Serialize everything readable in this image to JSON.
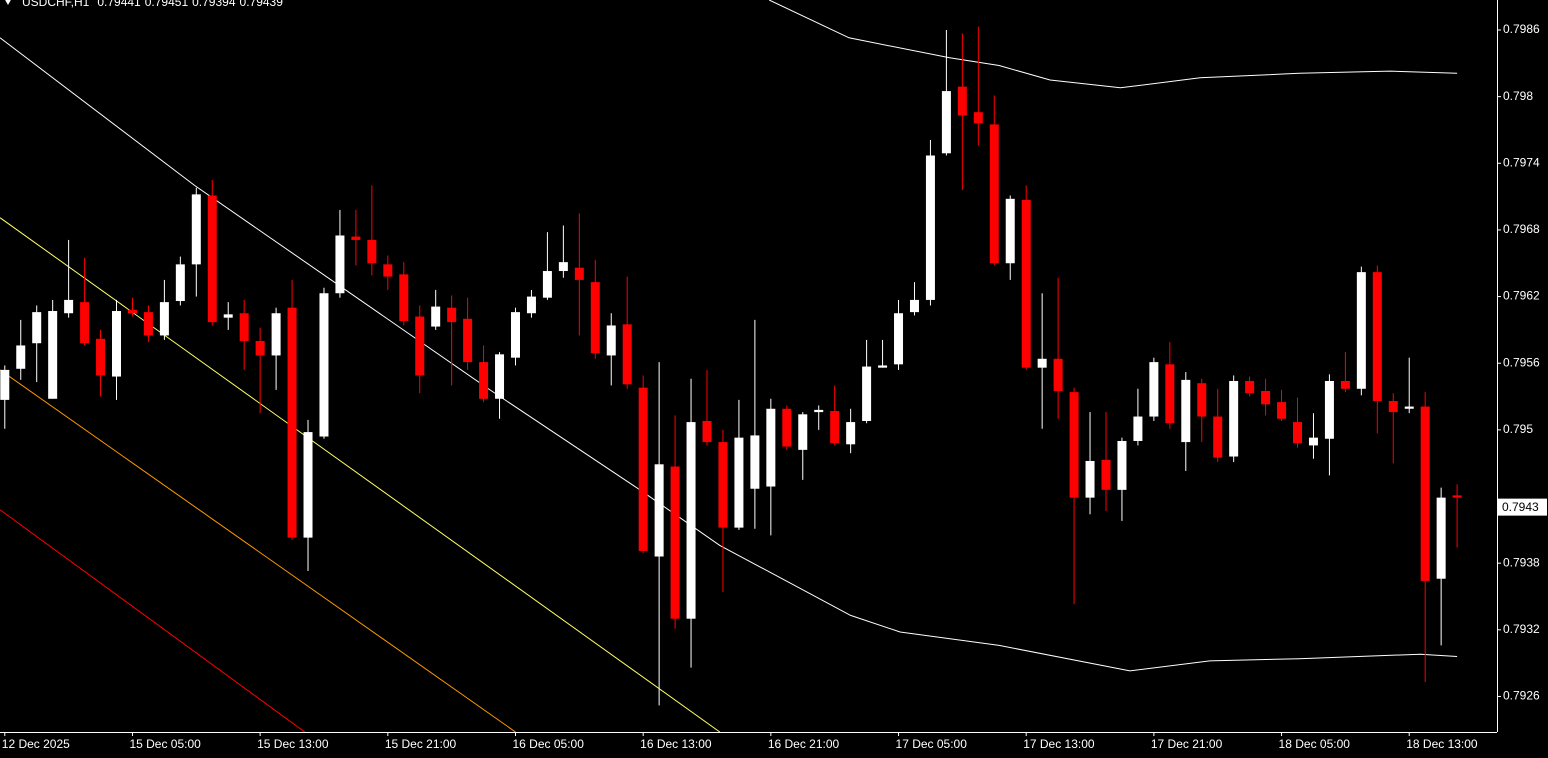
{
  "chart_data": {
    "type": "candlestick",
    "title": "USDCHF,H1",
    "categories": [
      "12 Dec 2025",
      null,
      null,
      null,
      null,
      null,
      null,
      null,
      "15 Dec 05:00",
      null,
      null,
      null,
      null,
      null,
      null,
      null,
      "15 Dec 13:00",
      null,
      null,
      null,
      null,
      null,
      null,
      null,
      "15 Dec 21:00",
      null,
      null,
      null,
      null,
      null,
      null,
      null,
      "16 Dec 05:00",
      null,
      null,
      null,
      null,
      null,
      null,
      null,
      "16 Dec 13:00",
      null,
      null,
      null,
      null,
      null,
      null,
      null,
      "16 Dec 21:00",
      null,
      null,
      null,
      null,
      null,
      null,
      null,
      "17 Dec 05:00",
      null,
      null,
      null,
      null,
      null,
      null,
      null,
      "17 Dec 13:00",
      null,
      null,
      null,
      null,
      null,
      null,
      null,
      "17 Dec 21:00",
      null,
      null,
      null,
      null,
      null,
      null,
      null,
      "18 Dec 05:00",
      null,
      null,
      null,
      null,
      null,
      null,
      null,
      "18 Dec 13:00",
      null,
      null,
      null
    ],
    "open": [
      0.79527,
      0.79555,
      0.79578,
      0.79528,
      0.79605,
      0.79615,
      0.79582,
      0.79548,
      0.79608,
      0.79606,
      0.79585,
      0.79616,
      0.79649,
      0.79711,
      0.79601,
      0.79605,
      0.7958,
      0.79567,
      0.7961,
      0.79403,
      0.79494,
      0.79623,
      0.79674,
      0.79671,
      0.79649,
      0.7964,
      0.79602,
      0.79593,
      0.7961,
      0.796,
      0.79561,
      0.79528,
      0.79565,
      0.79605,
      0.79619,
      0.79643,
      0.79646,
      0.79633,
      0.79567,
      0.79595,
      0.79538,
      0.79386,
      0.79467,
      0.7933,
      0.79508,
      0.79489,
      0.79412,
      0.79447,
      0.79449,
      0.79519,
      0.79482,
      0.79516,
      0.79517,
      0.79487,
      0.79508,
      0.79556,
      0.79559,
      0.79606,
      0.79617,
      0.79749,
      0.79809,
      0.79786,
      0.79775,
      0.7965,
      0.79707,
      0.79556,
      0.79564,
      0.79534,
      0.79439,
      0.79473,
      0.79446,
      0.7949,
      0.79512,
      0.79559,
      0.79489,
      0.79542,
      0.79512,
      0.79476,
      0.79544,
      0.79535,
      0.79525,
      0.79507,
      0.79486,
      0.79492,
      0.79544,
      0.79537,
      0.79642,
      0.79526,
      0.79519,
      0.79521,
      0.79366,
      0.79441
    ],
    "high": [
      0.79558,
      0.79599,
      0.79612,
      0.79617,
      0.79671,
      0.79655,
      0.7959,
      0.79617,
      0.79619,
      0.79612,
      0.79635,
      0.79656,
      0.79718,
      0.79725,
      0.79615,
      0.79617,
      0.79592,
      0.7961,
      0.79635,
      0.79509,
      0.79628,
      0.79698,
      0.79698,
      0.7972,
      0.79657,
      0.79651,
      0.79612,
      0.79626,
      0.79621,
      0.79619,
      0.79576,
      0.7957,
      0.7961,
      0.79626,
      0.79678,
      0.79684,
      0.79695,
      0.79653,
      0.79605,
      0.79638,
      0.79549,
      0.79561,
      0.79513,
      0.79546,
      0.79554,
      0.795,
      0.79527,
      0.79599,
      0.79528,
      0.79522,
      0.79516,
      0.79522,
      0.7954,
      0.79519,
      0.79581,
      0.79581,
      0.79617,
      0.79633,
      0.79761,
      0.7986,
      0.79857,
      0.79863,
      0.79801,
      0.79711,
      0.7972,
      0.79623,
      0.79637,
      0.79538,
      0.79516,
      0.79516,
      0.79493,
      0.79537,
      0.79565,
      0.79579,
      0.79552,
      0.79546,
      0.79537,
      0.79549,
      0.79548,
      0.79546,
      0.79536,
      0.79529,
      0.79515,
      0.7955,
      0.7957,
      0.79647,
      0.79648,
      0.79533,
      0.79565,
      0.79534,
      0.79448,
      0.79451
    ],
    "low": [
      0.79501,
      0.79545,
      0.79543,
      0.79528,
      0.79601,
      0.79576,
      0.7953,
      0.79527,
      0.79602,
      0.79579,
      0.79581,
      0.79612,
      0.7962,
      0.79594,
      0.7959,
      0.79554,
      0.79515,
      0.79536,
      0.79401,
      0.79373,
      0.79492,
      0.79619,
      0.79648,
      0.79639,
      0.79626,
      0.79594,
      0.79533,
      0.7959,
      0.7954,
      0.79554,
      0.79525,
      0.7951,
      0.79558,
      0.79601,
      0.79617,
      0.79637,
      0.79585,
      0.79564,
      0.7954,
      0.79537,
      0.79389,
      0.79252,
      0.79321,
      0.79286,
      0.79486,
      0.79354,
      0.7941,
      0.79411,
      0.79405,
      0.79482,
      0.79455,
      0.795,
      0.79486,
      0.79479,
      0.79506,
      0.79556,
      0.79554,
      0.79603,
      0.79612,
      0.79747,
      0.79716,
      0.79756,
      0.79648,
      0.79635,
      0.79554,
      0.79501,
      0.7951,
      0.79343,
      0.79424,
      0.79427,
      0.79418,
      0.79486,
      0.79508,
      0.79501,
      0.79463,
      0.79489,
      0.79471,
      0.79471,
      0.7953,
      0.79513,
      0.79508,
      0.79484,
      0.79474,
      0.79459,
      0.79534,
      0.79531,
      0.79497,
      0.7947,
      0.79515,
      0.79273,
      0.79306,
      0.79394
    ],
    "close": [
      0.79554,
      0.79576,
      0.79606,
      0.79607,
      0.79617,
      0.79578,
      0.79549,
      0.79607,
      0.79605,
      0.79585,
      0.79615,
      0.79649,
      0.79712,
      0.79597,
      0.79604,
      0.7958,
      0.79567,
      0.79605,
      0.79403,
      0.79498,
      0.79623,
      0.79675,
      0.79671,
      0.7965,
      0.79638,
      0.79598,
      0.79549,
      0.79611,
      0.79597,
      0.79561,
      0.79528,
      0.79568,
      0.79606,
      0.7962,
      0.79643,
      0.79651,
      0.79635,
      0.79569,
      0.79594,
      0.79541,
      0.79391,
      0.79469,
      0.7933,
      0.79507,
      0.79489,
      0.79412,
      0.79493,
      0.79495,
      0.79519,
      0.79485,
      0.79514,
      0.79518,
      0.79488,
      0.79507,
      0.79557,
      0.79558,
      0.79605,
      0.79617,
      0.79747,
      0.79805,
      0.79783,
      0.79776,
      0.7965,
      0.79708,
      0.79556,
      0.79564,
      0.79535,
      0.79439,
      0.79472,
      0.79446,
      0.7949,
      0.79512,
      0.79561,
      0.79506,
      0.79545,
      0.79512,
      0.79475,
      0.79544,
      0.79533,
      0.79523,
      0.7951,
      0.79488,
      0.79493,
      0.79544,
      0.79537,
      0.79642,
      0.79526,
      0.79516,
      0.79521,
      0.79364,
      0.79439,
      0.79439
    ],
    "up_color": "#ffffff",
    "down_color": "#ff0000",
    "overlays": [
      {
        "color": "#ffffff",
        "x": [
          47.9,
          52.9,
          59.2,
          62.3,
          65.5,
          69.9,
          74.9,
          81.1,
          86.8,
          91
        ],
        "values": [
          0.79887,
          0.79853,
          0.79835,
          0.79828,
          0.79815,
          0.79808,
          0.79817,
          0.79821,
          0.79823,
          0.79821
        ]
      },
      {
        "color": "#ffffff",
        "x": [
          -0.3,
          11.9,
          30.4,
          39.8,
          44.8,
          53,
          56.1,
          62.3,
          70.5,
          75.5,
          81.1,
          88.7,
          91
        ],
        "values": [
          0.79853,
          0.7972,
          0.79536,
          0.79446,
          0.79396,
          0.79333,
          0.79318,
          0.79306,
          0.79283,
          0.79292,
          0.79294,
          0.79298,
          0.79296
        ]
      },
      {
        "color": "#ffff66",
        "x": [
          -0.3,
          44.8
        ],
        "values": [
          0.79691,
          0.79228
        ]
      },
      {
        "color": "#ff9900",
        "x": [
          -0.3,
          32
        ],
        "values": [
          0.79554,
          0.79228
        ]
      },
      {
        "color": "#ff0000",
        "x": [
          -0.3,
          18.8
        ],
        "values": [
          0.79428,
          0.79228
        ]
      }
    ],
    "current_price": 0.7943,
    "xlim": [
      -0.3,
      93.5
    ],
    "ylim": [
      0.79228,
      0.79887
    ],
    "yticks": [
      0.7926,
      0.7932,
      0.7938,
      0.795,
      0.7956,
      0.7962,
      0.7968,
      0.7974,
      0.798,
      0.7986
    ]
  }
}
